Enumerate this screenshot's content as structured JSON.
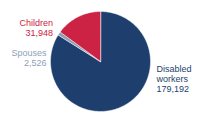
{
  "chart_data": {
    "type": "pie",
    "categories": [
      "Disabled\nworkers",
      "Spouses",
      "Children"
    ],
    "values": [
      179192,
      2526,
      31948
    ],
    "value_labels": [
      "179,192",
      "2,526",
      "31,948"
    ],
    "colors": [
      "#1e3f6e",
      "#8da0b8",
      "#cc2244"
    ],
    "data_labels": true
  }
}
